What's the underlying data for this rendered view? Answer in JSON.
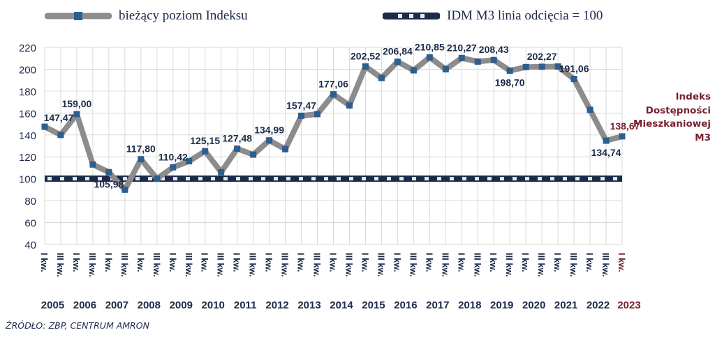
{
  "legend": {
    "series_label": "bieżący poziom Indeksu",
    "threshold_label": "IDM M3 linia odcięcia = 100"
  },
  "side_label": [
    "Indeks",
    "Dostępności",
    "Mieszkaniowej",
    "M3"
  ],
  "source": "ŹRÓDŁO: ZBP, CENTRUM AMRON",
  "colors": {
    "series_line": "#8c8c8c",
    "series_marker": "#2e5e8c",
    "threshold_dark": "#1c2a4a",
    "threshold_light": "#e8e8e8",
    "text": "#1c2a4a",
    "accent": "#7a1f2e",
    "grid": "#d9d9d9"
  },
  "chart_data": {
    "type": "line",
    "ylim": [
      40,
      220
    ],
    "yticks": [
      40,
      60,
      80,
      100,
      120,
      140,
      160,
      180,
      200,
      220
    ],
    "grid": true,
    "x": [
      "I kw.",
      "III kw.",
      "I kw.",
      "III kw.",
      "I kw.",
      "III kw.",
      "I kw.",
      "III kw.",
      "I kw.",
      "III kw.",
      "I kw.",
      "III kw.",
      "I kw.",
      "III kw.",
      "I kw.",
      "III kw.",
      "I kw.",
      "III kw.",
      "I kw.",
      "III kw.",
      "I kw.",
      "III kw.",
      "I kw.",
      "III kw.",
      "I kw.",
      "III kw.",
      "I kw.",
      "III kw.",
      "I kw.",
      "III kw.",
      "I kw.",
      "III kw.",
      "I kw.",
      "III kw.",
      "I kw.",
      "III kw.",
      "I kw."
    ],
    "years": [
      "2005",
      "2006",
      "2007",
      "2008",
      "2009",
      "2010",
      "2011",
      "2012",
      "2013",
      "2014",
      "2015",
      "2016",
      "2017",
      "2018",
      "2019",
      "2020",
      "2021",
      "2022",
      "2023"
    ],
    "series": [
      {
        "name": "bieżący poziom Indeksu",
        "values": [
          147.47,
          140,
          159.0,
          113,
          105.98,
          90,
          117.8,
          100,
          110.42,
          116,
          125.15,
          106,
          127.48,
          122,
          134.99,
          127,
          157.47,
          159,
          177.06,
          167,
          202.52,
          192,
          206.84,
          199,
          210.85,
          200,
          210.27,
          207,
          208.43,
          198.7,
          202,
          202.27,
          202.5,
          191.06,
          163,
          134.74,
          138.67
        ]
      },
      {
        "name": "IDM M3 linia odcięcia = 100",
        "values": [
          100,
          100,
          100,
          100,
          100,
          100,
          100,
          100,
          100,
          100,
          100,
          100,
          100,
          100,
          100,
          100,
          100,
          100,
          100,
          100,
          100,
          100,
          100,
          100,
          100,
          100,
          100,
          100,
          100,
          100,
          100,
          100,
          100,
          100,
          100,
          100,
          100
        ]
      }
    ],
    "data_labels": [
      {
        "i": 0,
        "text": "147,47"
      },
      {
        "i": 2,
        "text": "159,00"
      },
      {
        "i": 4,
        "text": "105,98"
      },
      {
        "i": 6,
        "text": "117,80"
      },
      {
        "i": 8,
        "text": "110,42"
      },
      {
        "i": 10,
        "text": "125,15"
      },
      {
        "i": 12,
        "text": "127,48"
      },
      {
        "i": 14,
        "text": "134,99"
      },
      {
        "i": 16,
        "text": "157,47"
      },
      {
        "i": 18,
        "text": "177,06"
      },
      {
        "i": 20,
        "text": "202,52"
      },
      {
        "i": 22,
        "text": "206,84"
      },
      {
        "i": 24,
        "text": "210,85"
      },
      {
        "i": 26,
        "text": "210,27"
      },
      {
        "i": 28,
        "text": "208,43"
      },
      {
        "i": 29,
        "text": "198,70"
      },
      {
        "i": 31,
        "text": "202,27"
      },
      {
        "i": 33,
        "text": "191,06"
      },
      {
        "i": 35,
        "text": "134,74"
      },
      {
        "i": 36,
        "text": "138,67"
      }
    ]
  }
}
